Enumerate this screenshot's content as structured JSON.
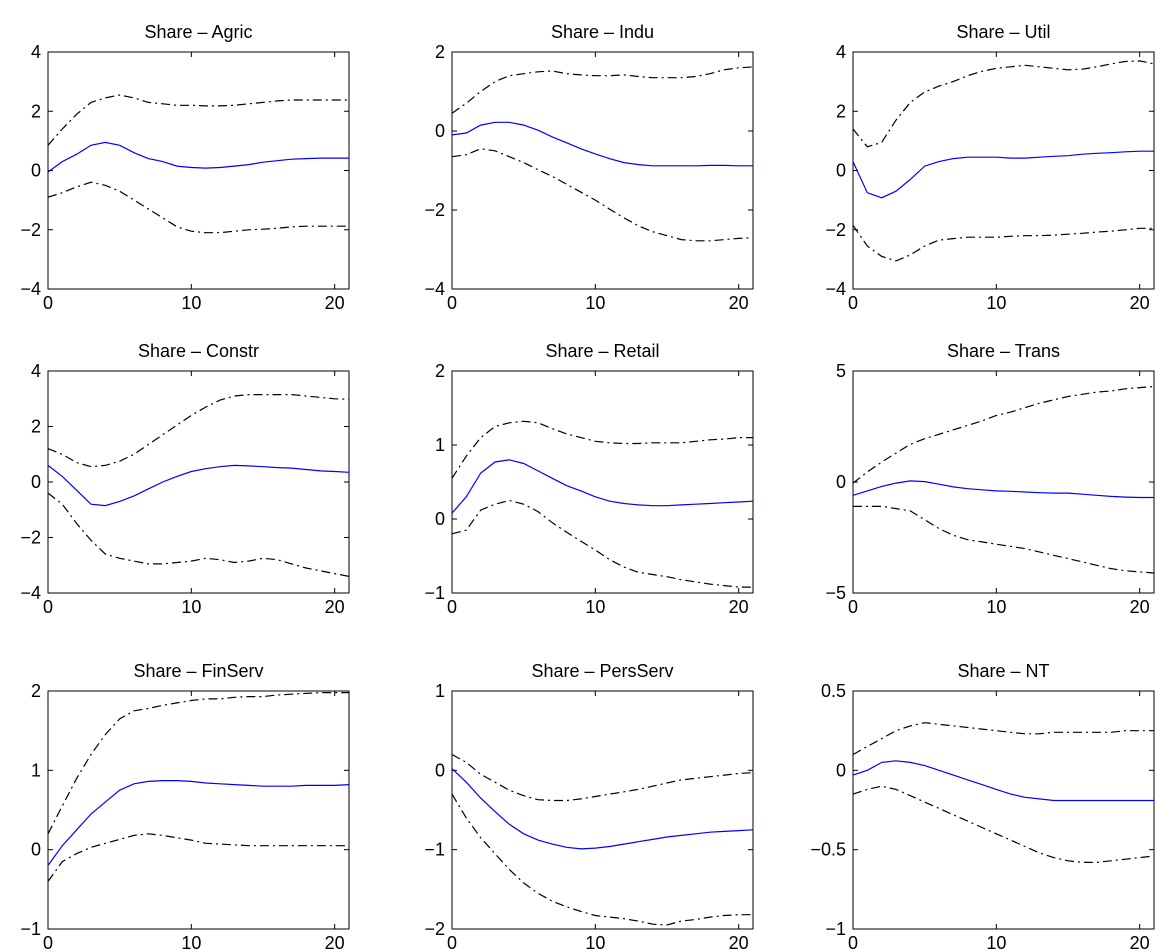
{
  "chart_data": [
    {
      "type": "line",
      "title": "Share – Agric",
      "x": [
        0,
        1,
        2,
        3,
        4,
        5,
        6,
        7,
        8,
        9,
        10,
        11,
        12,
        13,
        14,
        15,
        16,
        17,
        18,
        19,
        20,
        21
      ],
      "xlim": [
        0,
        21
      ],
      "ylim": [
        -4,
        4
      ],
      "xticks": [
        0,
        10,
        20
      ],
      "yticks": [
        -4,
        -2,
        0,
        2,
        4
      ],
      "series": [
        {
          "role": "upper",
          "values": [
            0.85,
            1.4,
            1.9,
            2.3,
            2.45,
            2.55,
            2.45,
            2.3,
            2.25,
            2.2,
            2.2,
            2.18,
            2.18,
            2.2,
            2.25,
            2.3,
            2.35,
            2.38,
            2.38,
            2.38,
            2.38,
            2.38
          ]
        },
        {
          "role": "mean",
          "values": [
            -0.05,
            0.3,
            0.55,
            0.85,
            0.95,
            0.85,
            0.6,
            0.4,
            0.3,
            0.15,
            0.1,
            0.08,
            0.1,
            0.15,
            0.2,
            0.28,
            0.33,
            0.38,
            0.4,
            0.42,
            0.42,
            0.42
          ]
        },
        {
          "role": "lower",
          "values": [
            -0.9,
            -0.75,
            -0.55,
            -0.4,
            -0.5,
            -0.7,
            -1.0,
            -1.3,
            -1.6,
            -1.9,
            -2.05,
            -2.1,
            -2.1,
            -2.05,
            -2.0,
            -1.98,
            -1.95,
            -1.9,
            -1.88,
            -1.88,
            -1.88,
            -1.88
          ]
        }
      ]
    },
    {
      "type": "line",
      "title": "Share – Indu",
      "x": [
        0,
        1,
        2,
        3,
        4,
        5,
        6,
        7,
        8,
        9,
        10,
        11,
        12,
        13,
        14,
        15,
        16,
        17,
        18,
        19,
        20,
        21
      ],
      "xlim": [
        0,
        21
      ],
      "ylim": [
        -4,
        2
      ],
      "xticks": [
        0,
        10,
        20
      ],
      "yticks": [
        -4,
        -2,
        0,
        2
      ],
      "series": [
        {
          "role": "upper",
          "values": [
            0.45,
            0.7,
            1.0,
            1.25,
            1.4,
            1.45,
            1.5,
            1.52,
            1.45,
            1.42,
            1.4,
            1.4,
            1.42,
            1.38,
            1.35,
            1.35,
            1.35,
            1.38,
            1.45,
            1.55,
            1.6,
            1.62
          ]
        },
        {
          "role": "mean",
          "values": [
            -0.1,
            -0.05,
            0.15,
            0.22,
            0.22,
            0.15,
            0.02,
            -0.15,
            -0.3,
            -0.45,
            -0.58,
            -0.7,
            -0.8,
            -0.85,
            -0.88,
            -0.88,
            -0.88,
            -0.88,
            -0.87,
            -0.87,
            -0.88,
            -0.88
          ]
        },
        {
          "role": "lower",
          "values": [
            -0.65,
            -0.6,
            -0.45,
            -0.5,
            -0.65,
            -0.8,
            -0.98,
            -1.15,
            -1.35,
            -1.55,
            -1.75,
            -1.98,
            -2.2,
            -2.4,
            -2.55,
            -2.65,
            -2.75,
            -2.78,
            -2.78,
            -2.75,
            -2.72,
            -2.7
          ]
        }
      ]
    },
    {
      "type": "line",
      "title": "Share – Util",
      "x": [
        0,
        1,
        2,
        3,
        4,
        5,
        6,
        7,
        8,
        9,
        10,
        11,
        12,
        13,
        14,
        15,
        16,
        17,
        18,
        19,
        20,
        21
      ],
      "xlim": [
        0,
        21
      ],
      "ylim": [
        -4,
        4
      ],
      "xticks": [
        0,
        10,
        20
      ],
      "yticks": [
        -4,
        -2,
        0,
        2,
        4
      ],
      "series": [
        {
          "role": "upper",
          "values": [
            1.4,
            0.8,
            0.95,
            1.7,
            2.3,
            2.65,
            2.85,
            3.0,
            3.2,
            3.35,
            3.45,
            3.5,
            3.55,
            3.5,
            3.45,
            3.4,
            3.42,
            3.5,
            3.6,
            3.68,
            3.7,
            3.6
          ]
        },
        {
          "role": "mean",
          "values": [
            0.3,
            -0.75,
            -0.92,
            -0.7,
            -0.3,
            0.15,
            0.3,
            0.4,
            0.45,
            0.45,
            0.45,
            0.42,
            0.42,
            0.45,
            0.48,
            0.5,
            0.55,
            0.58,
            0.6,
            0.63,
            0.65,
            0.65
          ]
        },
        {
          "role": "lower",
          "values": [
            -1.85,
            -2.55,
            -2.9,
            -3.05,
            -2.85,
            -2.55,
            -2.35,
            -2.3,
            -2.25,
            -2.25,
            -2.25,
            -2.22,
            -2.2,
            -2.2,
            -2.18,
            -2.15,
            -2.12,
            -2.08,
            -2.05,
            -2.0,
            -1.95,
            -1.95
          ]
        }
      ]
    },
    {
      "type": "line",
      "title": "Share – Constr",
      "x": [
        0,
        1,
        2,
        3,
        4,
        5,
        6,
        7,
        8,
        9,
        10,
        11,
        12,
        13,
        14,
        15,
        16,
        17,
        18,
        19,
        20,
        21
      ],
      "xlim": [
        0,
        21
      ],
      "ylim": [
        -4,
        4
      ],
      "xticks": [
        0,
        10,
        20
      ],
      "yticks": [
        -4,
        -2,
        0,
        2,
        4
      ],
      "series": [
        {
          "role": "upper",
          "values": [
            1.2,
            1.0,
            0.7,
            0.55,
            0.6,
            0.75,
            1.0,
            1.35,
            1.7,
            2.05,
            2.4,
            2.7,
            2.95,
            3.1,
            3.15,
            3.15,
            3.15,
            3.15,
            3.1,
            3.05,
            3.0,
            2.98
          ]
        },
        {
          "role": "mean",
          "values": [
            0.6,
            0.2,
            -0.3,
            -0.8,
            -0.85,
            -0.7,
            -0.5,
            -0.25,
            0.0,
            0.2,
            0.38,
            0.48,
            0.55,
            0.6,
            0.58,
            0.55,
            0.52,
            0.5,
            0.45,
            0.4,
            0.38,
            0.35
          ]
        },
        {
          "role": "lower",
          "values": [
            -0.4,
            -0.8,
            -1.5,
            -2.1,
            -2.6,
            -2.75,
            -2.85,
            -2.95,
            -2.95,
            -2.9,
            -2.85,
            -2.75,
            -2.8,
            -2.9,
            -2.85,
            -2.75,
            -2.8,
            -2.95,
            -3.1,
            -3.2,
            -3.3,
            -3.4
          ]
        }
      ]
    },
    {
      "type": "line",
      "title": "Share – Retail",
      "x": [
        0,
        1,
        2,
        3,
        4,
        5,
        6,
        7,
        8,
        9,
        10,
        11,
        12,
        13,
        14,
        15,
        16,
        17,
        18,
        19,
        20,
        21
      ],
      "xlim": [
        0,
        21
      ],
      "ylim": [
        -1,
        2
      ],
      "xticks": [
        0,
        10,
        20
      ],
      "yticks": [
        -1,
        0,
        1,
        2
      ],
      "series": [
        {
          "role": "upper",
          "values": [
            0.55,
            0.85,
            1.1,
            1.25,
            1.3,
            1.32,
            1.3,
            1.22,
            1.15,
            1.1,
            1.05,
            1.03,
            1.02,
            1.02,
            1.03,
            1.03,
            1.03,
            1.05,
            1.07,
            1.08,
            1.1,
            1.1
          ]
        },
        {
          "role": "mean",
          "values": [
            0.08,
            0.3,
            0.62,
            0.77,
            0.8,
            0.75,
            0.65,
            0.55,
            0.45,
            0.38,
            0.3,
            0.24,
            0.21,
            0.19,
            0.18,
            0.18,
            0.19,
            0.2,
            0.21,
            0.22,
            0.23,
            0.24
          ]
        },
        {
          "role": "lower",
          "values": [
            -0.2,
            -0.15,
            0.12,
            0.2,
            0.25,
            0.2,
            0.1,
            -0.05,
            -0.18,
            -0.3,
            -0.42,
            -0.55,
            -0.65,
            -0.72,
            -0.75,
            -0.78,
            -0.82,
            -0.85,
            -0.88,
            -0.9,
            -0.92,
            -0.92
          ]
        }
      ]
    },
    {
      "type": "line",
      "title": "Share – Trans",
      "x": [
        0,
        1,
        2,
        3,
        4,
        5,
        6,
        7,
        8,
        9,
        10,
        11,
        12,
        13,
        14,
        15,
        16,
        17,
        18,
        19,
        20,
        21
      ],
      "xlim": [
        0,
        21
      ],
      "ylim": [
        -5,
        5
      ],
      "xticks": [
        0,
        10,
        20
      ],
      "yticks": [
        -5,
        0,
        5
      ],
      "series": [
        {
          "role": "upper",
          "values": [
            -0.05,
            0.45,
            0.9,
            1.3,
            1.7,
            1.95,
            2.15,
            2.35,
            2.55,
            2.75,
            3.0,
            3.15,
            3.35,
            3.55,
            3.7,
            3.85,
            3.95,
            4.05,
            4.1,
            4.2,
            4.25,
            4.3
          ]
        },
        {
          "role": "mean",
          "values": [
            -0.6,
            -0.4,
            -0.2,
            -0.05,
            0.05,
            0.02,
            -0.1,
            -0.22,
            -0.3,
            -0.35,
            -0.4,
            -0.42,
            -0.45,
            -0.48,
            -0.5,
            -0.5,
            -0.55,
            -0.6,
            -0.65,
            -0.68,
            -0.7,
            -0.7
          ]
        },
        {
          "role": "lower",
          "values": [
            -1.1,
            -1.1,
            -1.1,
            -1.2,
            -1.3,
            -1.7,
            -2.1,
            -2.4,
            -2.6,
            -2.7,
            -2.8,
            -2.9,
            -3.0,
            -3.15,
            -3.3,
            -3.45,
            -3.6,
            -3.75,
            -3.9,
            -4.0,
            -4.05,
            -4.1
          ]
        }
      ]
    },
    {
      "type": "line",
      "title": "Share – FinServ",
      "x": [
        0,
        1,
        2,
        3,
        4,
        5,
        6,
        7,
        8,
        9,
        10,
        11,
        12,
        13,
        14,
        15,
        16,
        17,
        18,
        19,
        20,
        21
      ],
      "xlim": [
        0,
        21
      ],
      "ylim": [
        -1,
        2
      ],
      "xticks": [
        0,
        10,
        20
      ],
      "yticks": [
        -1,
        0,
        1,
        2
      ],
      "series": [
        {
          "role": "upper",
          "values": [
            0.2,
            0.55,
            0.9,
            1.2,
            1.45,
            1.65,
            1.75,
            1.78,
            1.82,
            1.85,
            1.88,
            1.9,
            1.9,
            1.92,
            1.93,
            1.93,
            1.95,
            1.96,
            1.97,
            1.98,
            1.98,
            1.98
          ]
        },
        {
          "role": "mean",
          "values": [
            -0.2,
            0.05,
            0.25,
            0.45,
            0.6,
            0.75,
            0.83,
            0.86,
            0.87,
            0.87,
            0.86,
            0.84,
            0.83,
            0.82,
            0.81,
            0.8,
            0.8,
            0.8,
            0.81,
            0.81,
            0.81,
            0.82
          ]
        },
        {
          "role": "lower",
          "values": [
            -0.4,
            -0.15,
            -0.05,
            0.03,
            0.08,
            0.13,
            0.18,
            0.2,
            0.18,
            0.15,
            0.12,
            0.08,
            0.07,
            0.06,
            0.05,
            0.05,
            0.05,
            0.05,
            0.05,
            0.05,
            0.05,
            0.05
          ]
        }
      ]
    },
    {
      "type": "line",
      "title": "Share – PersServ",
      "x": [
        0,
        1,
        2,
        3,
        4,
        5,
        6,
        7,
        8,
        9,
        10,
        11,
        12,
        13,
        14,
        15,
        16,
        17,
        18,
        19,
        20,
        21
      ],
      "xlim": [
        0,
        21
      ],
      "ylim": [
        -2,
        1
      ],
      "xticks": [
        0,
        10,
        20
      ],
      "yticks": [
        -2,
        -1,
        0,
        1
      ],
      "series": [
        {
          "role": "upper",
          "values": [
            0.2,
            0.1,
            -0.05,
            -0.15,
            -0.25,
            -0.32,
            -0.37,
            -0.38,
            -0.38,
            -0.36,
            -0.33,
            -0.3,
            -0.27,
            -0.24,
            -0.2,
            -0.16,
            -0.12,
            -0.1,
            -0.08,
            -0.06,
            -0.04,
            -0.03
          ]
        },
        {
          "role": "mean",
          "values": [
            0.02,
            -0.15,
            -0.35,
            -0.52,
            -0.68,
            -0.8,
            -0.88,
            -0.93,
            -0.97,
            -0.99,
            -0.98,
            -0.96,
            -0.93,
            -0.9,
            -0.87,
            -0.84,
            -0.82,
            -0.8,
            -0.78,
            -0.77,
            -0.76,
            -0.75
          ]
        },
        {
          "role": "lower",
          "values": [
            -0.3,
            -0.6,
            -0.85,
            -1.05,
            -1.25,
            -1.42,
            -1.55,
            -1.65,
            -1.72,
            -1.78,
            -1.83,
            -1.85,
            -1.87,
            -1.9,
            -1.94,
            -1.95,
            -1.9,
            -1.88,
            -1.85,
            -1.83,
            -1.82,
            -1.82
          ]
        }
      ]
    },
    {
      "type": "line",
      "title": "Share – NT",
      "x": [
        0,
        1,
        2,
        3,
        4,
        5,
        6,
        7,
        8,
        9,
        10,
        11,
        12,
        13,
        14,
        15,
        16,
        17,
        18,
        19,
        20,
        21
      ],
      "xlim": [
        0,
        21
      ],
      "ylim": [
        -1,
        0.5
      ],
      "xticks": [
        0,
        10,
        20
      ],
      "yticks": [
        -1,
        -0.5,
        0,
        0.5
      ],
      "series": [
        {
          "role": "upper",
          "values": [
            0.1,
            0.15,
            0.2,
            0.25,
            0.28,
            0.3,
            0.29,
            0.28,
            0.27,
            0.26,
            0.25,
            0.24,
            0.23,
            0.23,
            0.24,
            0.24,
            0.24,
            0.24,
            0.24,
            0.25,
            0.25,
            0.25
          ]
        },
        {
          "role": "mean",
          "values": [
            -0.03,
            0.0,
            0.05,
            0.06,
            0.05,
            0.03,
            0.0,
            -0.03,
            -0.06,
            -0.09,
            -0.12,
            -0.15,
            -0.17,
            -0.18,
            -0.19,
            -0.19,
            -0.19,
            -0.19,
            -0.19,
            -0.19,
            -0.19,
            -0.19
          ]
        },
        {
          "role": "lower",
          "values": [
            -0.15,
            -0.12,
            -0.1,
            -0.12,
            -0.16,
            -0.2,
            -0.24,
            -0.28,
            -0.32,
            -0.36,
            -0.4,
            -0.44,
            -0.48,
            -0.52,
            -0.55,
            -0.57,
            -0.58,
            -0.58,
            -0.57,
            -0.56,
            -0.55,
            -0.54
          ]
        }
      ]
    }
  ]
}
